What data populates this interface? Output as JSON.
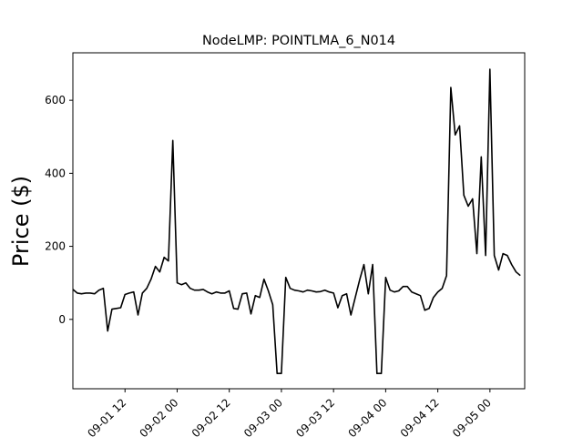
{
  "chart_data": {
    "type": "line",
    "title": "NodeLMP: POINTLMA_6_N014",
    "xlabel": "",
    "ylabel": "Price ($)",
    "xlim": [
      "2018-09-01 00:00",
      "2018-09-05 08:00"
    ],
    "ylim": [
      -190,
      730
    ],
    "grid": false,
    "x_ticks": [
      "09-01 12",
      "09-02 00",
      "09-02 12",
      "09-03 00",
      "09-03 12",
      "09-04 00",
      "09-04 12",
      "09-05 00"
    ],
    "y_ticks": [
      0,
      200,
      400,
      600
    ],
    "series": [
      {
        "color": "#000000",
        "x": [
          "2018-09-01 00:00",
          "2018-09-01 01:00",
          "2018-09-01 02:00",
          "2018-09-01 03:00",
          "2018-09-01 04:00",
          "2018-09-01 05:00",
          "2018-09-01 06:00",
          "2018-09-01 07:00",
          "2018-09-01 08:00",
          "2018-09-01 09:00",
          "2018-09-01 10:00",
          "2018-09-01 11:00",
          "2018-09-01 12:00",
          "2018-09-01 13:00",
          "2018-09-01 14:00",
          "2018-09-01 15:00",
          "2018-09-01 16:00",
          "2018-09-01 17:00",
          "2018-09-01 18:00",
          "2018-09-01 19:00",
          "2018-09-01 20:00",
          "2018-09-01 21:00",
          "2018-09-01 22:00",
          "2018-09-01 23:00",
          "2018-09-02 00:00",
          "2018-09-02 01:00",
          "2018-09-02 02:00",
          "2018-09-02 03:00",
          "2018-09-02 04:00",
          "2018-09-02 05:00",
          "2018-09-02 06:00",
          "2018-09-02 07:00",
          "2018-09-02 08:00",
          "2018-09-02 09:00",
          "2018-09-02 10:00",
          "2018-09-02 11:00",
          "2018-09-02 12:00",
          "2018-09-02 13:00",
          "2018-09-02 14:00",
          "2018-09-02 15:00",
          "2018-09-02 16:00",
          "2018-09-02 17:00",
          "2018-09-02 18:00",
          "2018-09-02 19:00",
          "2018-09-02 20:00",
          "2018-09-02 21:00",
          "2018-09-02 22:00",
          "2018-09-02 23:00",
          "2018-09-03 00:00",
          "2018-09-03 01:00",
          "2018-09-03 02:00",
          "2018-09-03 03:00",
          "2018-09-03 04:00",
          "2018-09-03 05:00",
          "2018-09-03 06:00",
          "2018-09-03 07:00",
          "2018-09-03 08:00",
          "2018-09-03 09:00",
          "2018-09-03 10:00",
          "2018-09-03 11:00",
          "2018-09-03 12:00",
          "2018-09-03 13:00",
          "2018-09-03 14:00",
          "2018-09-03 15:00",
          "2018-09-03 16:00",
          "2018-09-03 17:00",
          "2018-09-03 18:00",
          "2018-09-03 19:00",
          "2018-09-03 20:00",
          "2018-09-03 21:00",
          "2018-09-03 22:00",
          "2018-09-03 23:00",
          "2018-09-04 00:00",
          "2018-09-04 01:00",
          "2018-09-04 02:00",
          "2018-09-04 03:00",
          "2018-09-04 04:00",
          "2018-09-04 05:00",
          "2018-09-04 06:00",
          "2018-09-04 07:00",
          "2018-09-04 08:00",
          "2018-09-04 09:00",
          "2018-09-04 10:00",
          "2018-09-04 11:00",
          "2018-09-04 12:00",
          "2018-09-04 13:00",
          "2018-09-04 14:00",
          "2018-09-04 15:00",
          "2018-09-04 16:00",
          "2018-09-04 17:00",
          "2018-09-04 18:00",
          "2018-09-04 19:00",
          "2018-09-04 20:00",
          "2018-09-04 21:00",
          "2018-09-04 22:00",
          "2018-09-04 23:00",
          "2018-09-05 00:00",
          "2018-09-05 01:00",
          "2018-09-05 02:00",
          "2018-09-05 03:00",
          "2018-09-05 04:00",
          "2018-09-05 05:00",
          "2018-09-05 06:00",
          "2018-09-05 07:00"
        ],
        "y": [
          82,
          72,
          70,
          72,
          72,
          70,
          80,
          85,
          -32,
          28,
          30,
          32,
          68,
          72,
          75,
          12,
          72,
          85,
          110,
          145,
          130,
          170,
          160,
          490,
          100,
          95,
          100,
          85,
          80,
          80,
          82,
          75,
          70,
          75,
          72,
          72,
          78,
          30,
          28,
          70,
          72,
          15,
          65,
          60,
          110,
          78,
          40,
          -148,
          -148,
          115,
          85,
          80,
          78,
          75,
          80,
          78,
          75,
          76,
          80,
          75,
          72,
          32,
          65,
          70,
          12,
          60,
          108,
          150,
          70,
          150,
          -148,
          -148,
          115,
          80,
          75,
          78,
          90,
          90,
          75,
          70,
          65,
          25,
          30,
          60,
          75,
          85,
          120,
          635,
          505,
          530,
          340,
          310,
          330,
          180,
          445,
          175,
          685,
          175,
          135,
          180,
          175,
          150,
          130,
          120
        ]
      }
    ]
  }
}
